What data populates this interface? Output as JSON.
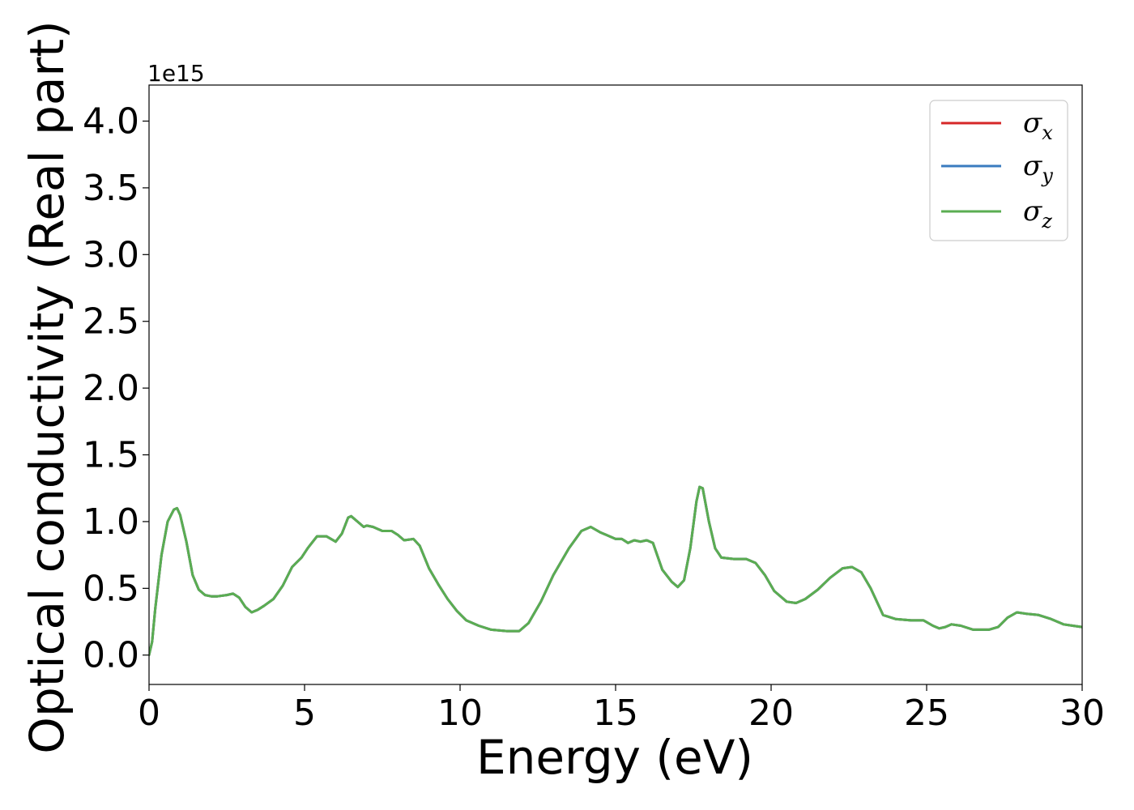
{
  "chart_data": {
    "type": "line",
    "xlabel": "Energy (eV)",
    "ylabel": "Optical conductivity (Real part)",
    "y_offset_label": "1e15",
    "xlim": [
      0,
      30
    ],
    "ylim": [
      -0.22,
      4.27
    ],
    "xticks": [
      0,
      5,
      10,
      15,
      20,
      25,
      30
    ],
    "xtick_labels": [
      "0",
      "5",
      "10",
      "15",
      "20",
      "25",
      "30"
    ],
    "yticks": [
      0.0,
      0.5,
      1.0,
      1.5,
      2.0,
      2.5,
      3.0,
      3.5,
      4.0
    ],
    "ytick_labels": [
      "0.0",
      "0.5",
      "1.0",
      "1.5",
      "2.0",
      "2.5",
      "3.0",
      "3.5",
      "4.0"
    ],
    "grid": false,
    "legend_position": "top-right",
    "x": [
      0,
      0.1,
      0.2,
      0.4,
      0.6,
      0.8,
      0.9,
      1.0,
      1.2,
      1.4,
      1.6,
      1.8,
      2.0,
      2.2,
      2.5,
      2.7,
      2.9,
      3.1,
      3.3,
      3.5,
      3.7,
      4.0,
      4.3,
      4.6,
      4.9,
      5.1,
      5.4,
      5.7,
      6.0,
      6.2,
      6.4,
      6.5,
      6.7,
      6.9,
      7.0,
      7.2,
      7.5,
      7.8,
      8.0,
      8.2,
      8.5,
      8.7,
      9.0,
      9.3,
      9.6,
      9.9,
      10.2,
      10.6,
      11.0,
      11.5,
      11.9,
      12.2,
      12.6,
      13.0,
      13.5,
      13.9,
      14.2,
      14.5,
      14.7,
      15.0,
      15.2,
      15.4,
      15.6,
      15.8,
      16.0,
      16.2,
      16.5,
      16.8,
      17.0,
      17.2,
      17.4,
      17.6,
      17.7,
      17.8,
      18.0,
      18.2,
      18.4,
      18.8,
      19.2,
      19.5,
      19.8,
      20.1,
      20.5,
      20.8,
      21.1,
      21.5,
      21.9,
      22.3,
      22.6,
      22.9,
      23.2,
      23.6,
      24.0,
      24.5,
      24.9,
      25.2,
      25.4,
      25.6,
      25.8,
      26.1,
      26.5,
      27.0,
      27.3,
      27.6,
      27.9,
      28.2,
      28.6,
      29.0,
      29.4,
      29.7,
      30.0
    ],
    "series": [
      {
        "name": "σx",
        "color": "#d62728",
        "values": [
          0.0,
          0.1,
          0.35,
          0.75,
          1.0,
          1.09,
          1.1,
          1.05,
          0.85,
          0.6,
          0.49,
          0.45,
          0.44,
          0.44,
          0.45,
          0.46,
          0.43,
          0.36,
          0.32,
          0.34,
          0.37,
          0.42,
          0.52,
          0.66,
          0.73,
          0.8,
          0.89,
          0.89,
          0.85,
          0.91,
          1.03,
          1.04,
          1.0,
          0.96,
          0.97,
          0.96,
          0.93,
          0.93,
          0.9,
          0.86,
          0.87,
          0.82,
          0.65,
          0.53,
          0.42,
          0.33,
          0.26,
          0.22,
          0.19,
          0.18,
          0.18,
          0.24,
          0.4,
          0.6,
          0.8,
          0.93,
          0.96,
          0.92,
          0.9,
          0.87,
          0.87,
          0.84,
          0.86,
          0.85,
          0.86,
          0.84,
          0.64,
          0.55,
          0.51,
          0.56,
          0.8,
          1.15,
          1.26,
          1.25,
          1.0,
          0.8,
          0.73,
          0.72,
          0.72,
          0.69,
          0.6,
          0.48,
          0.4,
          0.39,
          0.42,
          0.49,
          0.58,
          0.65,
          0.66,
          0.62,
          0.5,
          0.3,
          0.27,
          0.26,
          0.26,
          0.22,
          0.2,
          0.21,
          0.23,
          0.22,
          0.19,
          0.19,
          0.21,
          0.28,
          0.32,
          0.31,
          0.3,
          0.27,
          0.23,
          0.22,
          0.21
        ]
      },
      {
        "name": "σy",
        "color": "#3a7bbf",
        "values": [
          0.0,
          0.1,
          0.35,
          0.75,
          1.0,
          1.09,
          1.1,
          1.05,
          0.85,
          0.6,
          0.49,
          0.45,
          0.44,
          0.44,
          0.45,
          0.46,
          0.43,
          0.36,
          0.32,
          0.34,
          0.37,
          0.42,
          0.52,
          0.66,
          0.73,
          0.8,
          0.89,
          0.89,
          0.85,
          0.91,
          1.03,
          1.04,
          1.0,
          0.96,
          0.97,
          0.96,
          0.93,
          0.93,
          0.9,
          0.86,
          0.87,
          0.82,
          0.65,
          0.53,
          0.42,
          0.33,
          0.26,
          0.22,
          0.19,
          0.18,
          0.18,
          0.24,
          0.4,
          0.6,
          0.8,
          0.93,
          0.96,
          0.92,
          0.9,
          0.87,
          0.87,
          0.84,
          0.86,
          0.85,
          0.86,
          0.84,
          0.64,
          0.55,
          0.51,
          0.56,
          0.8,
          1.15,
          1.26,
          1.25,
          1.0,
          0.8,
          0.73,
          0.72,
          0.72,
          0.69,
          0.6,
          0.48,
          0.4,
          0.39,
          0.42,
          0.49,
          0.58,
          0.65,
          0.66,
          0.62,
          0.5,
          0.3,
          0.27,
          0.26,
          0.26,
          0.22,
          0.2,
          0.21,
          0.23,
          0.22,
          0.19,
          0.19,
          0.21,
          0.28,
          0.32,
          0.31,
          0.3,
          0.27,
          0.23,
          0.22,
          0.21
        ]
      },
      {
        "name": "σz",
        "color": "#5aad52",
        "values": [
          0.0,
          0.1,
          0.35,
          0.75,
          1.0,
          1.09,
          1.1,
          1.05,
          0.85,
          0.6,
          0.49,
          0.45,
          0.44,
          0.44,
          0.45,
          0.46,
          0.43,
          0.36,
          0.32,
          0.34,
          0.37,
          0.42,
          0.52,
          0.66,
          0.73,
          0.8,
          0.89,
          0.89,
          0.85,
          0.91,
          1.03,
          1.04,
          1.0,
          0.96,
          0.97,
          0.96,
          0.93,
          0.93,
          0.9,
          0.86,
          0.87,
          0.82,
          0.65,
          0.53,
          0.42,
          0.33,
          0.26,
          0.22,
          0.19,
          0.18,
          0.18,
          0.24,
          0.4,
          0.6,
          0.8,
          0.93,
          0.96,
          0.92,
          0.9,
          0.87,
          0.87,
          0.84,
          0.86,
          0.85,
          0.86,
          0.84,
          0.64,
          0.55,
          0.51,
          0.56,
          0.8,
          1.15,
          1.26,
          1.25,
          1.0,
          0.8,
          0.73,
          0.72,
          0.72,
          0.69,
          0.6,
          0.48,
          0.4,
          0.39,
          0.42,
          0.49,
          0.58,
          0.65,
          0.66,
          0.62,
          0.5,
          0.3,
          0.27,
          0.26,
          0.26,
          0.22,
          0.2,
          0.21,
          0.23,
          0.22,
          0.19,
          0.19,
          0.21,
          0.28,
          0.32,
          0.31,
          0.3,
          0.27,
          0.23,
          0.22,
          0.21
        ]
      }
    ],
    "legend": {
      "entries": [
        {
          "symbol": "σ",
          "subscript": "x"
        },
        {
          "symbol": "σ",
          "subscript": "y"
        },
        {
          "symbol": "σ",
          "subscript": "z"
        }
      ]
    }
  }
}
